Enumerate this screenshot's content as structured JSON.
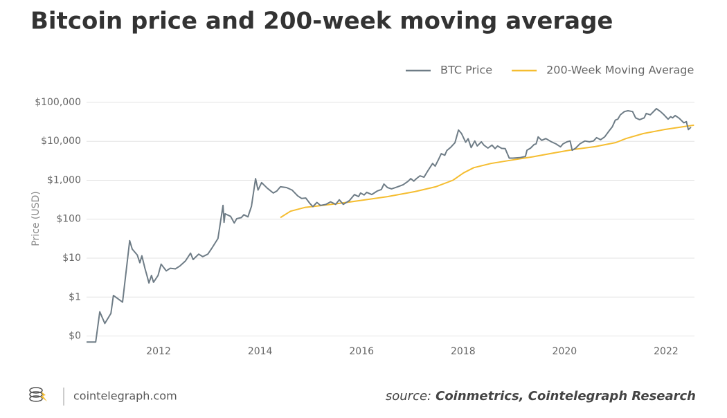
{
  "chart_data": {
    "type": "line",
    "title": "Bitcoin price and 200-week moving average",
    "y_label": "Price (USD)",
    "log_y": true,
    "grid": true,
    "legend": "top-right",
    "xlim": [
      2010.58,
      2022.56
    ],
    "xticks": [
      2012,
      2014,
      2016,
      2018,
      2020,
      2022
    ],
    "ylim": [
      0.06,
      200000
    ],
    "yticks": [
      {
        "value": 0.1,
        "label": "$0"
      },
      {
        "value": 1,
        "label": "$1"
      },
      {
        "value": 10,
        "label": "$10"
      },
      {
        "value": 100,
        "label": "$100"
      },
      {
        "value": 1000,
        "label": "$1,000"
      },
      {
        "value": 10000,
        "label": "$10,000"
      },
      {
        "value": 100000,
        "label": "$100,000"
      }
    ],
    "series": [
      {
        "name": "BTC Price",
        "color": "#6e7c86",
        "x": [
          2010.58,
          2010.76,
          2010.84,
          2010.94,
          2011.06,
          2011.11,
          2011.29,
          2011.43,
          2011.48,
          2011.58,
          2011.63,
          2011.67,
          2011.73,
          2011.77,
          2011.81,
          2011.86,
          2011.9,
          2011.99,
          2012.05,
          2012.15,
          2012.23,
          2012.33,
          2012.42,
          2012.53,
          2012.63,
          2012.68,
          2012.79,
          2012.87,
          2012.97,
          2013.05,
          2013.17,
          2013.27,
          2013.29,
          2013.31,
          2013.42,
          2013.49,
          2013.54,
          2013.63,
          2013.68,
          2013.76,
          2013.83,
          2013.91,
          2013.96,
          2014.03,
          2014.14,
          2014.26,
          2014.33,
          2014.4,
          2014.52,
          2014.63,
          2014.74,
          2014.82,
          2014.9,
          2014.98,
          2015.04,
          2015.12,
          2015.19,
          2015.3,
          2015.39,
          2015.49,
          2015.56,
          2015.64,
          2015.76,
          2015.86,
          2015.94,
          2015.98,
          2016.05,
          2016.1,
          2016.2,
          2016.31,
          2016.39,
          2016.44,
          2016.51,
          2016.59,
          2016.71,
          2016.82,
          2016.92,
          2016.97,
          2017.03,
          2017.08,
          2017.15,
          2017.23,
          2017.3,
          2017.4,
          2017.45,
          2017.52,
          2017.57,
          2017.64,
          2017.68,
          2017.76,
          2017.84,
          2017.91,
          2017.97,
          2018.05,
          2018.1,
          2018.16,
          2018.23,
          2018.28,
          2018.36,
          2018.41,
          2018.49,
          2018.57,
          2018.63,
          2018.68,
          2018.76,
          2018.83,
          2018.91,
          2018.98,
          2019.12,
          2019.23,
          2019.26,
          2019.33,
          2019.4,
          2019.44,
          2019.48,
          2019.55,
          2019.63,
          2019.74,
          2019.83,
          2019.92,
          2019.97,
          2020.05,
          2020.11,
          2020.15,
          2020.22,
          2020.3,
          2020.4,
          2020.49,
          2020.57,
          2020.63,
          2020.71,
          2020.79,
          2020.88,
          2020.94,
          2021.0,
          2021.05,
          2021.1,
          2021.18,
          2021.25,
          2021.34,
          2021.4,
          2021.48,
          2021.57,
          2021.61,
          2021.69,
          2021.77,
          2021.81,
          2021.89,
          2021.96,
          2022.04,
          2022.09,
          2022.13,
          2022.18,
          2022.26,
          2022.35,
          2022.4,
          2022.44,
          2022.49
        ],
        "values": [
          0.07,
          0.07,
          0.42,
          0.21,
          0.38,
          1.1,
          0.74,
          28,
          17,
          12,
          7.6,
          11.5,
          5.5,
          3.6,
          2.3,
          3.6,
          2.4,
          3.6,
          7,
          4.7,
          5.5,
          5.3,
          6.3,
          8.5,
          13.4,
          9.2,
          12.7,
          10.9,
          12.7,
          18,
          32,
          227,
          83,
          138,
          118,
          80,
          103,
          110,
          130,
          115,
          215,
          1100,
          560,
          870,
          630,
          470,
          530,
          680,
          650,
          560,
          400,
          340,
          350,
          255,
          210,
          270,
          225,
          240,
          280,
          240,
          315,
          240,
          300,
          430,
          380,
          470,
          420,
          490,
          430,
          530,
          580,
          800,
          650,
          600,
          680,
          770,
          950,
          1100,
          950,
          1100,
          1300,
          1200,
          1700,
          2700,
          2300,
          3500,
          4800,
          4400,
          5800,
          7100,
          9200,
          19500,
          15800,
          9500,
          11700,
          6900,
          10200,
          7600,
          9700,
          8000,
          6700,
          8000,
          6500,
          7600,
          6600,
          6500,
          3700,
          3700,
          3800,
          4100,
          5900,
          6700,
          8300,
          8600,
          13000,
          10600,
          11800,
          9700,
          8600,
          7200,
          8600,
          9700,
          10200,
          5900,
          6700,
          8600,
          10200,
          9700,
          10200,
          12400,
          11000,
          13000,
          18700,
          23500,
          35000,
          37000,
          48000,
          58000,
          61000,
          58000,
          40000,
          36000,
          40000,
          52000,
          48000,
          61000,
          69000,
          58000,
          48000,
          37000,
          43000,
          40000,
          46000,
          39000,
          30000,
          32000,
          20000,
          23000
        ]
      },
      {
        "name": "200-Week Moving Average",
        "color": "#f5bd30",
        "x": [
          2014.4,
          2014.6,
          2014.88,
          2015.15,
          2015.56,
          2015.96,
          2016.51,
          2017.05,
          2017.46,
          2017.8,
          2018.01,
          2018.21,
          2018.55,
          2018.96,
          2019.37,
          2019.78,
          2020.19,
          2020.6,
          2021.01,
          2021.21,
          2021.55,
          2021.96,
          2022.37,
          2022.55
        ],
        "values": [
          110,
          160,
          200,
          220,
          255,
          300,
          380,
          510,
          680,
          1000,
          1550,
          2100,
          2700,
          3300,
          4000,
          5000,
          6200,
          7300,
          9300,
          11800,
          15800,
          20000,
          24000,
          26000
        ]
      }
    ]
  },
  "footer": {
    "site": "cointelegraph.com",
    "source_prefix": "source:",
    "source": "Coinmetrics, Cointelegraph Research"
  }
}
